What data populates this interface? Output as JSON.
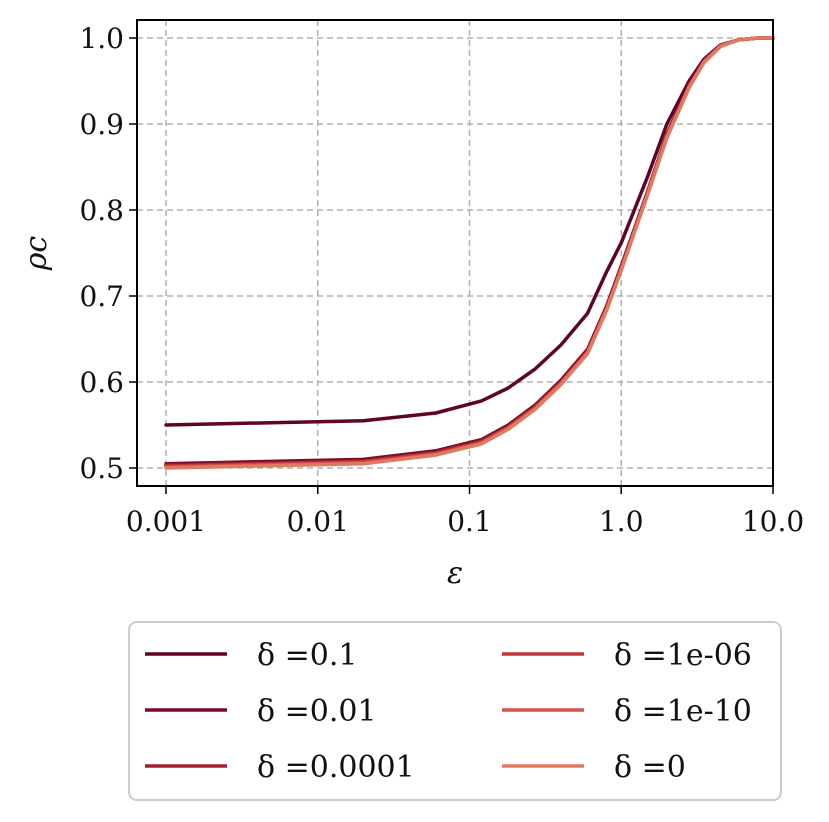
{
  "chart_data": {
    "type": "line",
    "xlabel": "ε",
    "ylabel": "ρc",
    "x_scale": "log",
    "xlim": [
      0.001,
      10.0
    ],
    "ylim": [
      0.48,
      1.02
    ],
    "x_ticks": [
      0.001,
      0.01,
      0.1,
      1.0,
      10.0
    ],
    "x_tick_labels": [
      "0.001",
      "0.01",
      "0.1",
      "1.0",
      "10.0"
    ],
    "y_ticks": [
      0.5,
      0.6,
      0.7,
      0.8,
      0.9,
      1.0
    ],
    "y_tick_labels": [
      "0.5",
      "0.6",
      "0.7",
      "0.8",
      "0.9",
      "1.0"
    ],
    "grid": true,
    "legend_position": "bottom",
    "x": [
      0.001,
      0.02,
      0.06,
      0.12,
      0.18,
      0.27,
      0.4,
      0.6,
      0.8,
      1.0,
      1.5,
      2.0,
      2.8,
      3.5,
      4.5,
      6.0,
      8.0,
      10.0
    ],
    "series": [
      {
        "name": "δ =0.1",
        "color": "#5e0426",
        "values": [
          0.55,
          0.555,
          0.564,
          0.578,
          0.593,
          0.615,
          0.643,
          0.68,
          0.728,
          0.762,
          0.84,
          0.9,
          0.95,
          0.975,
          0.992,
          0.998,
          1.0,
          1.0
        ]
      },
      {
        "name": "δ =0.01",
        "color": "#7a0b2a",
        "values": [
          0.505,
          0.51,
          0.52,
          0.533,
          0.55,
          0.573,
          0.602,
          0.638,
          0.688,
          0.735,
          0.823,
          0.888,
          0.946,
          0.973,
          0.991,
          0.998,
          1.0,
          1.0
        ]
      },
      {
        "name": "δ =0.0001",
        "color": "#a5202f",
        "values": [
          0.503,
          0.508,
          0.518,
          0.531,
          0.548,
          0.571,
          0.6,
          0.636,
          0.686,
          0.733,
          0.822,
          0.887,
          0.945,
          0.973,
          0.991,
          0.998,
          1.0,
          1.0
        ]
      },
      {
        "name": "δ =1e-06",
        "color": "#c2383a",
        "values": [
          0.502,
          0.507,
          0.517,
          0.53,
          0.547,
          0.57,
          0.599,
          0.635,
          0.685,
          0.732,
          0.821,
          0.886,
          0.944,
          0.972,
          0.991,
          0.998,
          1.0,
          1.0
        ]
      },
      {
        "name": "δ =1e-10",
        "color": "#d3554a",
        "values": [
          0.501,
          0.506,
          0.516,
          0.529,
          0.546,
          0.569,
          0.598,
          0.634,
          0.684,
          0.731,
          0.82,
          0.885,
          0.943,
          0.972,
          0.991,
          0.998,
          1.0,
          1.0
        ]
      },
      {
        "name": "δ =0",
        "color": "#df7a62",
        "values": [
          0.5,
          0.505,
          0.515,
          0.528,
          0.545,
          0.568,
          0.597,
          0.633,
          0.683,
          0.73,
          0.819,
          0.884,
          0.942,
          0.971,
          0.99,
          0.998,
          1.0,
          1.0
        ]
      }
    ]
  }
}
